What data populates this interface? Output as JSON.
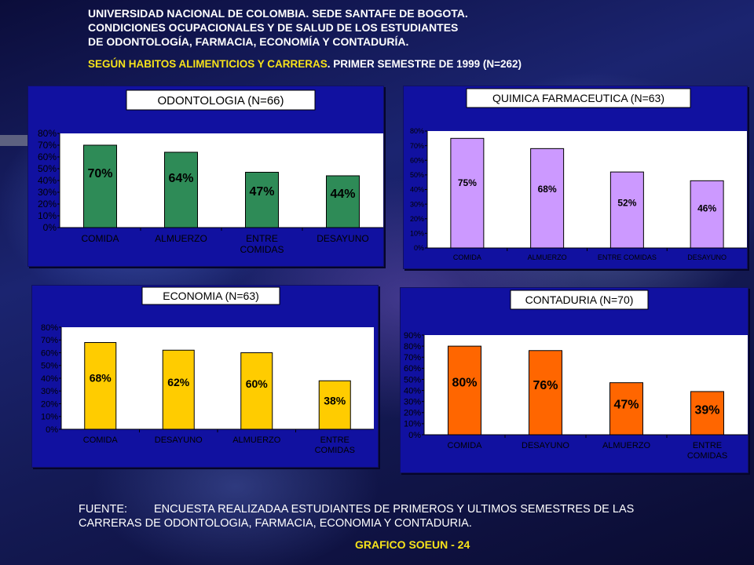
{
  "header": {
    "line1": "UNIVERSIDAD NACIONAL DE COLOMBIA.  SEDE SANTAFE DE BOGOTA.",
    "line2": "CONDICIONES OCUPACIONALES Y DE SALUD DE LOS ESTUDIANTES",
    "line3": "DE ODONTOLOGÍA, FARMACIA, ECONOMÍA Y CONTADURÍA.",
    "subtitle_yellow": "SEGÚN  HABITOS ALIMENTICIOS Y CARRERAS",
    "subtitle_white": ". PRIMER SEMESTRE DE 1999   (N=262)"
  },
  "colors": {
    "panel_bg": "#1111a0",
    "plot_bg": "#ffffff",
    "odontologia": "#2e8b57",
    "farmacia": "#cc99ff",
    "economia": "#ffcc00",
    "contaduria": "#ff6600"
  },
  "chart_data": [
    {
      "type": "bar",
      "title": "ODONTOLOGIA (N=66)",
      "categories": [
        "COMIDA",
        "ALMUERZO",
        "ENTRE COMIDAS",
        "DESAYUNO"
      ],
      "category_lines": [
        [
          "COMIDA"
        ],
        [
          "ALMUERZO"
        ],
        [
          "ENTRE",
          "COMIDAS"
        ],
        [
          "DESAYUNO"
        ]
      ],
      "values": [
        70,
        64,
        47,
        44
      ],
      "data_labels": [
        "70%",
        "64%",
        "47%",
        "44%"
      ],
      "yticks": [
        "0%",
        "10%",
        "20%",
        "30%",
        "40%",
        "50%",
        "60%",
        "70%",
        "80%"
      ],
      "ylim": [
        0,
        80
      ],
      "color": "#2e8b57",
      "grid": false,
      "legend": "none"
    },
    {
      "type": "bar",
      "title": "QUIMICA FARMACEUTICA (N=63)",
      "categories": [
        "COMIDA",
        "ALMUERZO",
        "ENTRE COMIDAS",
        "DESAYUNO"
      ],
      "category_lines": [
        [
          "COMIDA"
        ],
        [
          "ALMUERZO"
        ],
        [
          "ENTRE COMIDAS"
        ],
        [
          "DESAYUNO"
        ]
      ],
      "values": [
        75,
        68,
        52,
        46
      ],
      "data_labels": [
        "75%",
        "68%",
        "52%",
        "46%"
      ],
      "yticks": [
        "0%",
        "10%",
        "20%",
        "30%",
        "40%",
        "50%",
        "60%",
        "70%",
        "80%"
      ],
      "ylim": [
        0,
        80
      ],
      "color": "#cc99ff",
      "grid": false,
      "legend": "none"
    },
    {
      "type": "bar",
      "title": "ECONOMIA (N=63)",
      "categories": [
        "COMIDA",
        "DESAYUNO",
        "ALMUERZO",
        "ENTRE COMIDAS"
      ],
      "category_lines": [
        [
          "COMIDA"
        ],
        [
          "DESAYUNO"
        ],
        [
          "ALMUERZO"
        ],
        [
          "ENTRE",
          "COMIDAS"
        ]
      ],
      "values": [
        68,
        62,
        60,
        38
      ],
      "data_labels": [
        "68%",
        "62%",
        "60%",
        "38%"
      ],
      "yticks": [
        "0%",
        "10%",
        "20%",
        "30%",
        "40%",
        "50%",
        "60%",
        "70%",
        "80%"
      ],
      "ylim": [
        0,
        80
      ],
      "color": "#ffcc00",
      "grid": false,
      "legend": "none"
    },
    {
      "type": "bar",
      "title": "CONTADURIA (N=70)",
      "categories": [
        "COMIDA",
        "DESAYUNO",
        "ALMUERZO",
        "ENTRE COMIDAS"
      ],
      "category_lines": [
        [
          "COMIDA"
        ],
        [
          "DESAYUNO"
        ],
        [
          "ALMUERZO"
        ],
        [
          "ENTRE",
          "COMIDAS"
        ]
      ],
      "values": [
        80,
        76,
        47,
        39
      ],
      "data_labels": [
        "80%",
        "76%",
        "47%",
        "39%"
      ],
      "yticks": [
        "0%",
        "10%",
        "20%",
        "30%",
        "40%",
        "50%",
        "60%",
        "70%",
        "80%",
        "90%"
      ],
      "ylim": [
        0,
        90
      ],
      "color": "#ff6600",
      "grid": false,
      "legend": "none"
    }
  ],
  "footer": {
    "label": "FUENTE:",
    "line1": "ENCUESTA REALIZADAA ESTUDIANTES DE PRIMEROS Y ULTIMOS SEMESTRES DE LAS",
    "line2": "CARRERAS DE ODONTOLOGIA, FARMACIA, ECONOMIA Y CONTADURIA.",
    "grafico": "GRAFICO SOEUN - 24"
  }
}
